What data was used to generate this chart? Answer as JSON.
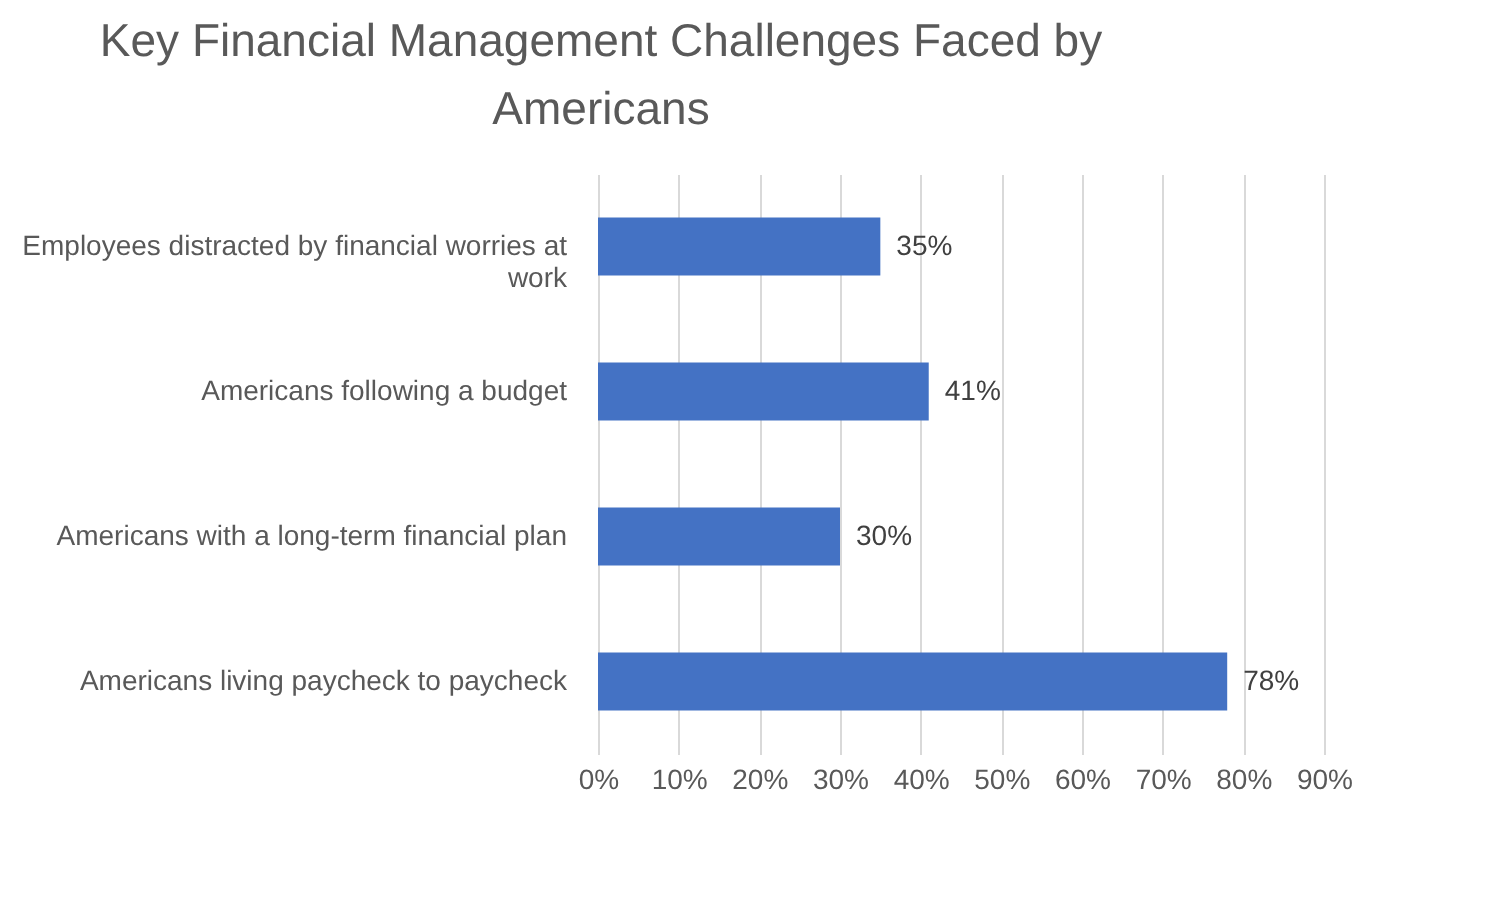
{
  "chart_data": {
    "type": "bar",
    "orientation": "horizontal",
    "title": "Key Financial Management Challenges Faced by Americans",
    "categories": [
      "Employees distracted by financial worries at work",
      "Americans following a budget",
      "Americans with a long-term financial plan",
      "Americans living paycheck to paycheck"
    ],
    "values": [
      35,
      41,
      30,
      78
    ],
    "value_labels": [
      "35%",
      "41%",
      "30%",
      "78%"
    ],
    "color": "#4472c4",
    "xlim": [
      0,
      90
    ],
    "xticks": [
      {
        "value": 0,
        "label": "0%"
      },
      {
        "value": 10,
        "label": "10%"
      },
      {
        "value": 20,
        "label": "20%"
      },
      {
        "value": 30,
        "label": "30%"
      },
      {
        "value": 40,
        "label": "40%"
      },
      {
        "value": 50,
        "label": "50%"
      },
      {
        "value": 60,
        "label": "60%"
      },
      {
        "value": 70,
        "label": "70%"
      },
      {
        "value": 80,
        "label": "80%"
      },
      {
        "value": 90,
        "label": "90%"
      }
    ],
    "grid": "x"
  }
}
